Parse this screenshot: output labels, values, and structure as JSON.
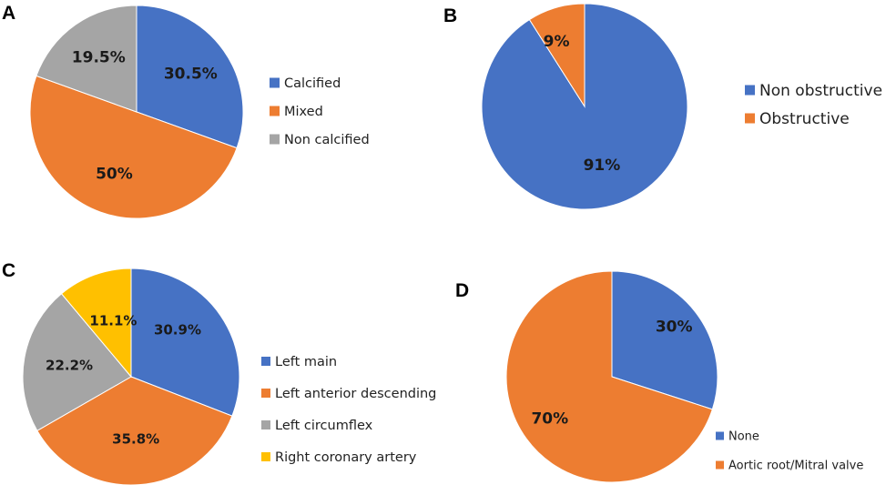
{
  "panels": [
    {
      "letter": "A"
    },
    {
      "letter": "B"
    },
    {
      "letter": "C"
    },
    {
      "letter": "D"
    }
  ],
  "chart_data": [
    {
      "type": "pie",
      "panel": "A",
      "title": "",
      "categories": [
        "Calcified",
        "Mixed",
        "Non calcified"
      ],
      "values": [
        30.5,
        50,
        19.5
      ],
      "value_labels": [
        "30.5%",
        "50%",
        "19.5%"
      ],
      "colors": [
        "#4672c4",
        "#ed7d31",
        "#a5a5a5"
      ],
      "legend_position": "right"
    },
    {
      "type": "pie",
      "panel": "B",
      "title": "",
      "categories": [
        "Non obstructive",
        "Obstructive"
      ],
      "values": [
        91,
        9
      ],
      "value_labels": [
        "91%",
        "9%"
      ],
      "colors": [
        "#4672c4",
        "#ed7d31"
      ],
      "legend_position": "right"
    },
    {
      "type": "pie",
      "panel": "C",
      "title": "",
      "categories": [
        "Left main",
        "Left anterior descending",
        "Left circumflex",
        "Right coronary artery"
      ],
      "values": [
        30.9,
        35.8,
        22.2,
        11.1
      ],
      "value_labels": [
        "30.9%",
        "35.8%",
        "22.2%",
        "11.1%"
      ],
      "colors": [
        "#4672c4",
        "#ed7d31",
        "#a5a5a5",
        "#ffc000"
      ],
      "legend_position": "right"
    },
    {
      "type": "pie",
      "panel": "D",
      "title": "",
      "categories": [
        "None",
        "Aortic root/Mitral valve"
      ],
      "values": [
        30,
        70
      ],
      "value_labels": [
        "30%",
        "70%"
      ],
      "colors": [
        "#4672c4",
        "#ed7d31"
      ],
      "legend_position": "bottom-right"
    }
  ]
}
